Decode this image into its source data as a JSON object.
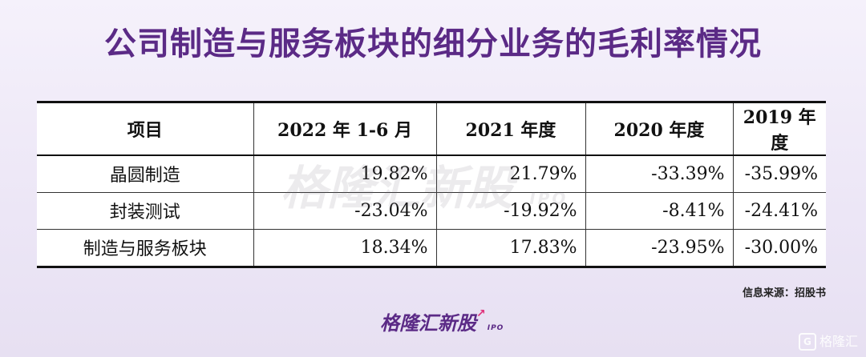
{
  "title": "公司制造与服务板块的细分业务的毛利率情况",
  "table": {
    "headers": [
      "项目",
      "2022 年 1-6 月",
      "2021 年度",
      "2020 年度",
      "2019 年度"
    ],
    "rows": [
      {
        "label": "晶圆制造",
        "values": [
          "19.82%",
          "21.79%",
          "-33.39%",
          "-35.99%"
        ]
      },
      {
        "label": "封装测试",
        "values": [
          "-23.04%",
          "-19.92%",
          "-8.41%",
          "-24.41%"
        ]
      },
      {
        "label": "制造与服务板块",
        "values": [
          "18.34%",
          "17.83%",
          "-23.95%",
          "-30.00%"
        ]
      }
    ]
  },
  "watermark": {
    "text": "格隆汇新股",
    "sub": "IPO"
  },
  "source": "信息来源：招股书",
  "logo": {
    "text": "格隆汇新股",
    "sub": "IPO"
  },
  "corner_logo": {
    "icon_text": "G",
    "text": "格隆汇"
  }
}
